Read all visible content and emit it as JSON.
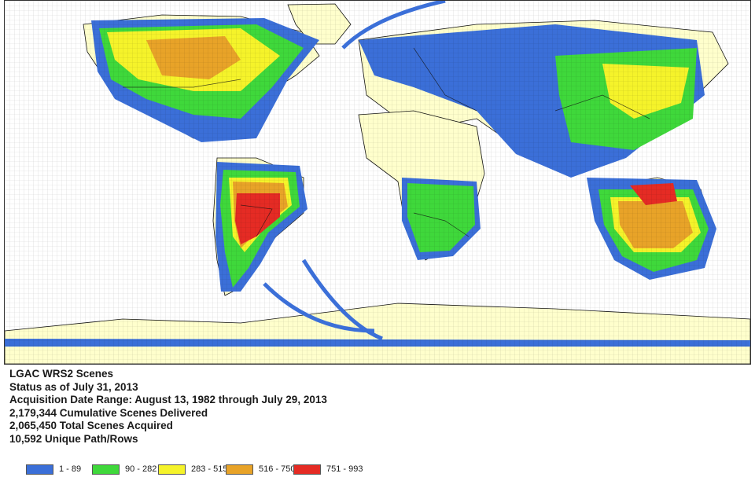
{
  "map": {
    "colors": {
      "ocean": "#ffffff",
      "land": "#ffffcc",
      "border": "#111111"
    },
    "legend": [
      {
        "label": "1 - 89",
        "color": "#3b6fd8"
      },
      {
        "label": "90 - 282",
        "color": "#3fd83b"
      },
      {
        "label": "283 - 515",
        "color": "#f5f32a"
      },
      {
        "label": "516 - 750",
        "color": "#e8a328"
      },
      {
        "label": "751 - 993",
        "color": "#e52b24"
      }
    ]
  },
  "info": {
    "line1": "LGAC WRS2 Scenes",
    "line2": "Status as of July 31, 2013",
    "line3": "Acquisition Date Range:  August 13, 1982 through July 29, 2013",
    "line4": "2,179,344 Cumulative Scenes Delivered",
    "line5": "2,065,450 Total Scenes Acquired",
    "line6": "10,592 Unique Path/Rows"
  }
}
